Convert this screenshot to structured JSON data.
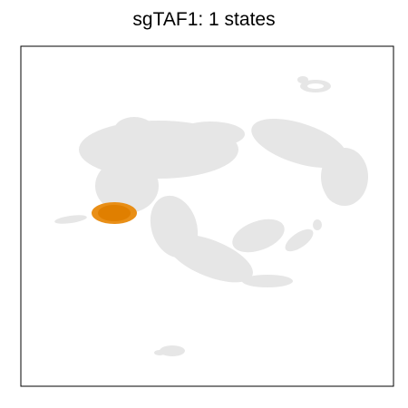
{
  "chart_data": {
    "type": "scatter",
    "title": "sgTAF1: 1 states",
    "xlabel": "",
    "ylabel": "",
    "axis_ticks": "none",
    "grid": false,
    "background_color": "#e6e6e6",
    "highlight_color": "#e8890b",
    "series": [
      {
        "name": "",
        "role": "background",
        "points": [
          [
            0.35,
            0.52
          ],
          [
            0.35,
            0.62
          ],
          [
            0.4,
            0.67
          ],
          [
            0.42,
            0.64
          ],
          [
            0.5,
            0.62
          ],
          [
            0.56,
            0.66
          ],
          [
            0.6,
            0.61
          ],
          [
            0.3,
            0.43
          ],
          [
            0.34,
            0.38
          ],
          [
            0.37,
            0.34
          ],
          [
            0.42,
            0.3
          ],
          [
            0.45,
            0.3
          ],
          [
            0.5,
            0.3
          ],
          [
            0.55,
            0.28
          ],
          [
            0.6,
            0.27
          ],
          [
            0.65,
            0.6
          ],
          [
            0.69,
            0.57
          ],
          [
            0.72,
            0.56
          ],
          [
            0.76,
            0.56
          ],
          [
            0.78,
            0.57
          ],
          [
            0.8,
            0.53
          ],
          [
            0.81,
            0.49
          ],
          [
            0.81,
            0.45
          ],
          [
            0.84,
            0.7
          ],
          [
            0.87,
            0.72
          ],
          [
            0.89,
            0.7
          ],
          [
            0.86,
            0.83
          ],
          [
            0.88,
            0.84
          ],
          [
            0.11,
            0.44
          ],
          [
            0.14,
            0.43
          ],
          [
            0.75,
            0.37
          ],
          [
            0.77,
            0.33
          ],
          [
            0.72,
            0.38
          ],
          [
            0.68,
            0.32
          ],
          [
            0.48,
            0.1
          ],
          [
            0.52,
            0.11
          ],
          [
            0.44,
            0.09
          ],
          [
            0.4,
            0.63
          ]
        ]
      },
      {
        "name": "",
        "role": "highlight",
        "points": [
          [
            0.22,
            0.48
          ],
          [
            0.25,
            0.48
          ],
          [
            0.28,
            0.48
          ],
          [
            0.31,
            0.48
          ],
          [
            0.24,
            0.46
          ],
          [
            0.27,
            0.46
          ],
          [
            0.3,
            0.46
          ],
          [
            0.24,
            0.5
          ],
          [
            0.27,
            0.5
          ],
          [
            0.3,
            0.5
          ]
        ]
      }
    ]
  }
}
